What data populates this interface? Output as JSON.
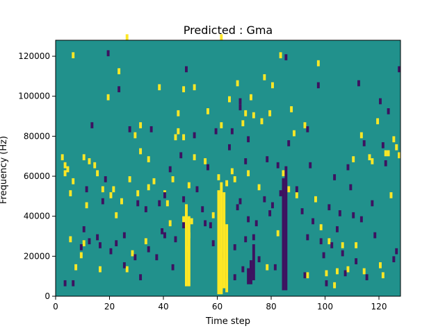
{
  "chart_data": {
    "type": "heatmap",
    "title": "Predicted : Gma",
    "xlabel": "Time step",
    "ylabel": "Frequency (Hz)",
    "xlim": [
      0,
      128
    ],
    "ylim": [
      0,
      128000
    ],
    "x_ticks": [
      0,
      20,
      40,
      60,
      80,
      100,
      120
    ],
    "x_tick_labels": [
      "0",
      "20",
      "40",
      "60",
      "80",
      "100",
      "120"
    ],
    "y_ticks": [
      0,
      20000,
      40000,
      60000,
      80000,
      100000,
      120000
    ],
    "y_tick_labels": [
      "0",
      "20000",
      "40000",
      "60000",
      "80000",
      "100000",
      "120000"
    ],
    "grid": false,
    "legend": "none",
    "rows": 128,
    "background_value": 0,
    "value_colors": {
      "-1": "#3d1260",
      "0": "#21918c",
      "1": "#fde725"
    },
    "cells_high": [
      [
        2,
        68
      ],
      [
        3,
        60
      ],
      [
        3,
        64
      ],
      [
        4,
        62
      ],
      [
        5,
        27
      ],
      [
        5,
        50
      ],
      [
        6,
        56
      ],
      [
        6,
        119
      ],
      [
        7,
        13
      ],
      [
        9,
        19
      ],
      [
        10,
        68
      ],
      [
        10,
        25
      ],
      [
        11,
        44
      ],
      [
        12,
        66
      ],
      [
        14,
        64
      ],
      [
        15,
        60
      ],
      [
        16,
        12
      ],
      [
        17,
        52
      ],
      [
        19,
        98
      ],
      [
        20,
        49
      ],
      [
        21,
        52
      ],
      [
        22,
        39
      ],
      [
        23,
        111
      ],
      [
        24,
        46
      ],
      [
        26,
        12
      ],
      [
        26,
        128
      ],
      [
        27,
        57
      ],
      [
        28,
        20
      ],
      [
        29,
        79
      ],
      [
        30,
        50
      ],
      [
        31,
        71
      ],
      [
        31,
        84
      ],
      [
        33,
        26
      ],
      [
        34,
        67
      ],
      [
        34,
        53
      ],
      [
        36,
        56
      ],
      [
        38,
        103
      ],
      [
        40,
        50
      ],
      [
        41,
        45
      ],
      [
        42,
        35
      ],
      [
        43,
        57
      ],
      [
        44,
        78
      ],
      [
        45,
        90
      ],
      [
        45,
        81
      ],
      [
        47,
        78
      ],
      [
        47,
        102
      ],
      [
        47,
        37
      ],
      [
        48,
        43
      ],
      [
        48,
        40
      ],
      [
        48,
        22
      ],
      [
        49,
        29
      ],
      [
        49,
        54
      ],
      [
        50,
        36
      ],
      [
        51,
        68
      ],
      [
        51,
        103
      ],
      [
        55,
        66
      ],
      [
        56,
        91
      ],
      [
        58,
        39
      ],
      [
        60,
        58
      ],
      [
        61,
        128
      ],
      [
        61,
        84
      ],
      [
        63,
        55
      ],
      [
        64,
        97
      ],
      [
        65,
        61
      ],
      [
        66,
        57
      ],
      [
        67,
        105
      ],
      [
        69,
        85
      ],
      [
        70,
        90
      ],
      [
        71,
        60
      ],
      [
        72,
        98
      ],
      [
        73,
        89
      ],
      [
        75,
        53
      ],
      [
        76,
        86
      ],
      [
        77,
        108
      ],
      [
        78,
        13
      ],
      [
        79,
        90
      ],
      [
        80,
        104
      ],
      [
        82,
        30
      ],
      [
        83,
        119
      ],
      [
        84,
        60
      ],
      [
        86,
        52
      ],
      [
        87,
        92
      ],
      [
        88,
        80
      ],
      [
        89,
        49
      ],
      [
        92,
        84
      ],
      [
        93,
        9
      ],
      [
        96,
        47
      ],
      [
        97,
        115
      ],
      [
        98,
        33
      ],
      [
        100,
        10
      ],
      [
        101,
        26
      ],
      [
        103,
        4
      ],
      [
        104,
        11
      ],
      [
        106,
        24
      ],
      [
        108,
        12
      ],
      [
        110,
        67
      ],
      [
        111,
        24
      ],
      [
        113,
        79
      ],
      [
        114,
        11
      ],
      [
        116,
        68
      ],
      [
        117,
        66
      ],
      [
        119,
        86
      ],
      [
        120,
        14
      ],
      [
        121,
        9
      ],
      [
        122,
        70
      ],
      [
        123,
        70
      ],
      [
        124,
        49
      ],
      [
        125,
        77
      ],
      [
        126,
        73
      ],
      [
        127,
        69
      ]
    ],
    "cells_high_runs": [
      [
        48,
        5,
        40
      ],
      [
        49,
        5,
        35
      ],
      [
        60,
        3,
        50
      ],
      [
        61,
        3,
        54
      ],
      [
        62,
        4,
        48
      ],
      [
        63,
        2,
        34
      ],
      [
        61,
        1,
        17
      ],
      [
        60,
        1,
        23
      ]
    ],
    "cells_low": [
      [
        3,
        5
      ],
      [
        6,
        5
      ],
      [
        9,
        23
      ],
      [
        10,
        32
      ],
      [
        11,
        52
      ],
      [
        12,
        26
      ],
      [
        13,
        84
      ],
      [
        15,
        28
      ],
      [
        16,
        24
      ],
      [
        17,
        46
      ],
      [
        18,
        57
      ],
      [
        19,
        120
      ],
      [
        20,
        21
      ],
      [
        22,
        25
      ],
      [
        23,
        102
      ],
      [
        25,
        14
      ],
      [
        25,
        29
      ],
      [
        27,
        82
      ],
      [
        29,
        18
      ],
      [
        30,
        45
      ],
      [
        31,
        8
      ],
      [
        33,
        42
      ],
      [
        34,
        22
      ],
      [
        35,
        82
      ],
      [
        37,
        18
      ],
      [
        38,
        45
      ],
      [
        39,
        31
      ],
      [
        40,
        49
      ],
      [
        40,
        29
      ],
      [
        42,
        62
      ],
      [
        43,
        13
      ],
      [
        44,
        27
      ],
      [
        46,
        69
      ],
      [
        47,
        34
      ],
      [
        47,
        47
      ],
      [
        48,
        112
      ],
      [
        51,
        79
      ],
      [
        52,
        52
      ],
      [
        54,
        42
      ],
      [
        55,
        35
      ],
      [
        56,
        63
      ],
      [
        57,
        34
      ],
      [
        58,
        25
      ],
      [
        59,
        81
      ],
      [
        62,
        19
      ],
      [
        63,
        9
      ],
      [
        64,
        73
      ],
      [
        65,
        81
      ],
      [
        66,
        8
      ],
      [
        66,
        23
      ],
      [
        67,
        43
      ],
      [
        68,
        96
      ],
      [
        68,
        93
      ],
      [
        68,
        46
      ],
      [
        69,
        12
      ],
      [
        70,
        27
      ],
      [
        70,
        66
      ],
      [
        71,
        77
      ],
      [
        71,
        37
      ],
      [
        72,
        11
      ],
      [
        73,
        28
      ],
      [
        74,
        35
      ],
      [
        75,
        17
      ],
      [
        77,
        47
      ],
      [
        78,
        67
      ],
      [
        79,
        40
      ],
      [
        80,
        44
      ],
      [
        81,
        13
      ],
      [
        82,
        64
      ],
      [
        83,
        50
      ],
      [
        85,
        118
      ],
      [
        86,
        75
      ],
      [
        89,
        52
      ],
      [
        91,
        41
      ],
      [
        92,
        9
      ],
      [
        93,
        82
      ],
      [
        93,
        28
      ],
      [
        94,
        64
      ],
      [
        95,
        36
      ],
      [
        97,
        104
      ],
      [
        98,
        26
      ],
      [
        99,
        19
      ],
      [
        100,
        5
      ],
      [
        101,
        43
      ],
      [
        102,
        24
      ],
      [
        103,
        58
      ],
      [
        104,
        32
      ],
      [
        105,
        40
      ],
      [
        106,
        20
      ],
      [
        107,
        10
      ],
      [
        108,
        63
      ],
      [
        109,
        53
      ],
      [
        110,
        39
      ],
      [
        111,
        16
      ],
      [
        112,
        105
      ],
      [
        113,
        37
      ],
      [
        114,
        75
      ],
      [
        115,
        8
      ],
      [
        117,
        45
      ],
      [
        118,
        29
      ],
      [
        120,
        96
      ],
      [
        121,
        74
      ],
      [
        122,
        65
      ],
      [
        123,
        91
      ],
      [
        125,
        17
      ],
      [
        126,
        21
      ],
      [
        127,
        112
      ]
    ],
    "cells_low_runs": [
      [
        71,
        6,
        8
      ],
      [
        72,
        6,
        12
      ],
      [
        73,
        8,
        18
      ],
      [
        84,
        3,
        56
      ],
      [
        85,
        3,
        62
      ]
    ]
  }
}
